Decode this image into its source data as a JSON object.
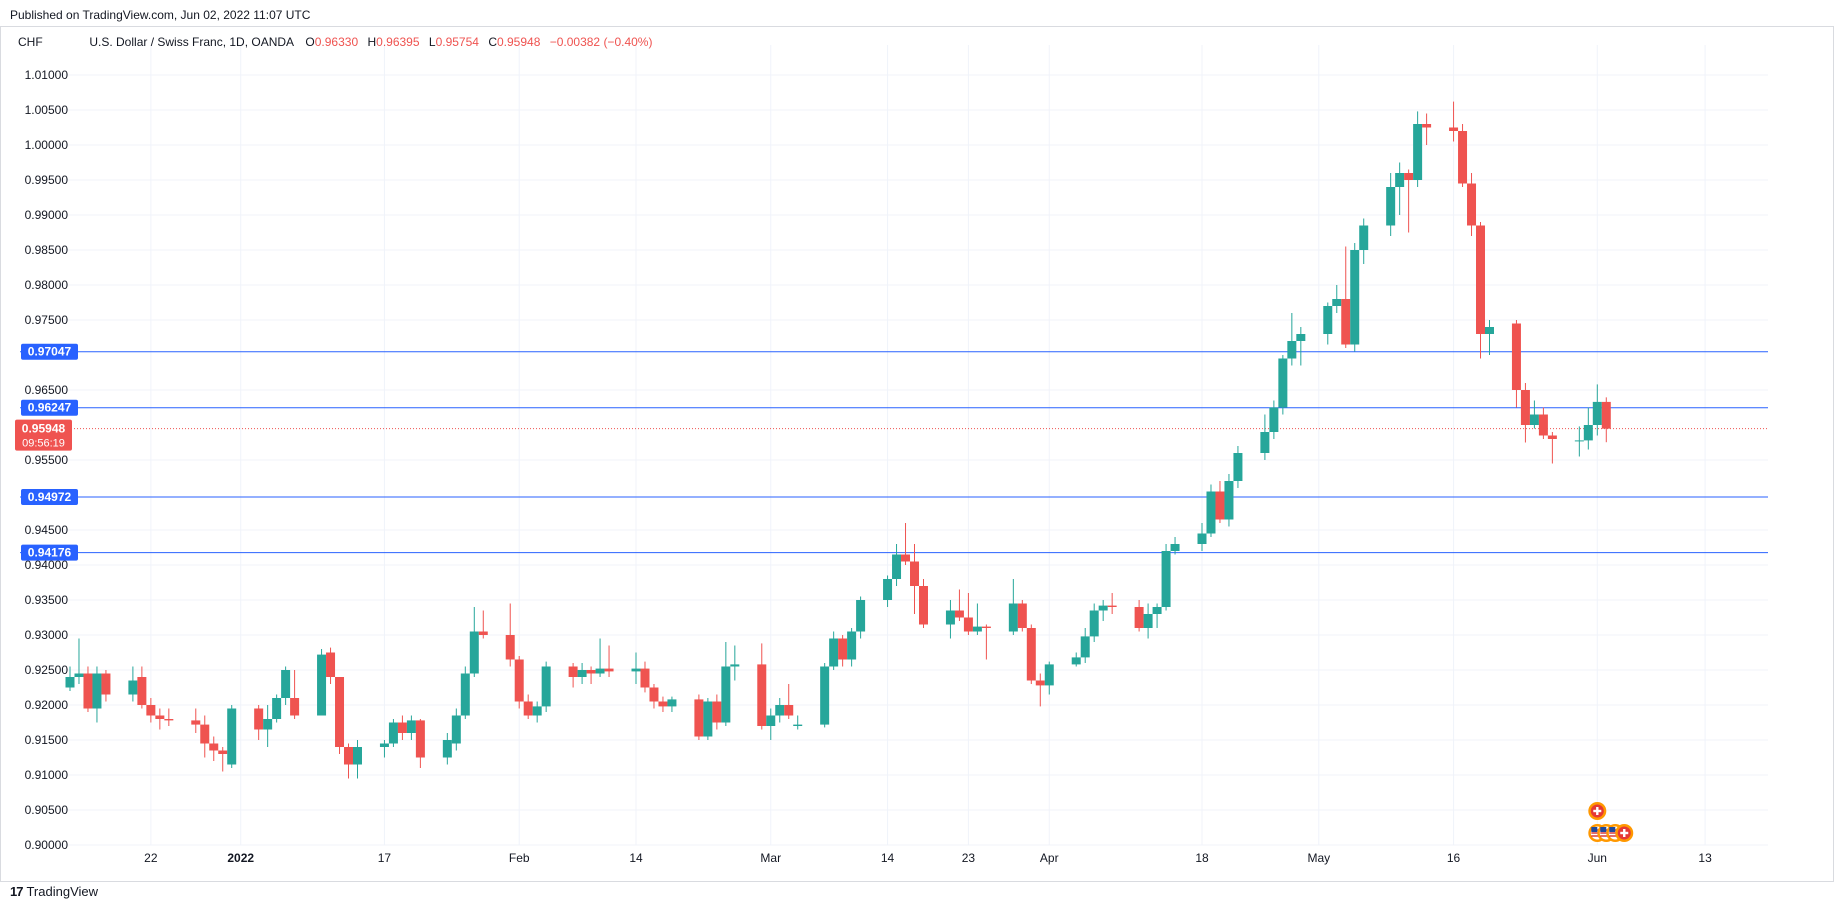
{
  "header": {
    "published": "Published on TradingView.com, Jun 02, 2022 11:07 UTC"
  },
  "legend": {
    "symbol": "CHF",
    "description": "U.S. Dollar / Swiss Franc, 1D, OANDA",
    "open_label": "O",
    "open": "0.96330",
    "high_label": "H",
    "high": "0.96395",
    "low_label": "L",
    "low": "0.95754",
    "close_label": "C",
    "close": "0.95948",
    "change": "−0.00382 (−0.40%)"
  },
  "footer": {
    "brand": "TradingView",
    "logo_icon": "tradingview-logo-icon"
  },
  "colors": {
    "up": "#26a69a",
    "down": "#ef5350",
    "hline": "#2962ff",
    "grid": "#f0f3fa",
    "price_line": "#ef5350"
  },
  "chart_data": {
    "type": "candlestick",
    "title": "U.S. Dollar / Swiss Franc, 1D, OANDA",
    "y_range": [
      0.9,
      1.011
    ],
    "y_ticks": [
      "0.90000",
      "0.90500",
      "0.91000",
      "0.91500",
      "0.92000",
      "0.92500",
      "0.93000",
      "0.93500",
      "0.94000",
      "0.94500",
      "0.95500",
      "0.96500",
      "0.97500",
      "0.98000",
      "0.98500",
      "0.99000",
      "0.99500",
      "1.00000",
      "1.00500",
      "1.01000"
    ],
    "x_range": [
      "2021-12-13",
      "2022-06-20"
    ],
    "x_ticks": [
      {
        "label": "22",
        "date": "2021-12-22"
      },
      {
        "label": "2022",
        "date": "2022-01-01"
      },
      {
        "label": "17",
        "date": "2022-01-17"
      },
      {
        "label": "Feb",
        "date": "2022-02-01"
      },
      {
        "label": "14",
        "date": "2022-02-14"
      },
      {
        "label": "Mar",
        "date": "2022-03-01"
      },
      {
        "label": "14",
        "date": "2022-03-14"
      },
      {
        "label": "23",
        "date": "2022-03-23"
      },
      {
        "label": "Apr",
        "date": "2022-04-01"
      },
      {
        "label": "18",
        "date": "2022-04-18"
      },
      {
        "label": "May",
        "date": "2022-05-01"
      },
      {
        "label": "16",
        "date": "2022-05-16"
      },
      {
        "label": "Jun",
        "date": "2022-06-01"
      },
      {
        "label": "13",
        "date": "2022-06-13"
      }
    ],
    "horizontal_lines": [
      {
        "value": 0.97047,
        "label": "0.97047"
      },
      {
        "value": 0.96247,
        "label": "0.96247"
      },
      {
        "value": 0.94972,
        "label": "0.94972"
      },
      {
        "value": 0.94176,
        "label": "0.94176"
      }
    ],
    "last_price": {
      "value": 0.95948,
      "label": "0.95948",
      "countdown": "09:56:19"
    },
    "candles": [
      {
        "d": "2021-12-13",
        "o": 0.9225,
        "h": 0.9255,
        "l": 0.922,
        "c": 0.924
      },
      {
        "d": "2021-12-14",
        "o": 0.924,
        "h": 0.9295,
        "l": 0.923,
        "c": 0.9245
      },
      {
        "d": "2021-12-15",
        "o": 0.9245,
        "h": 0.9255,
        "l": 0.919,
        "c": 0.9195
      },
      {
        "d": "2021-12-16",
        "o": 0.9195,
        "h": 0.9255,
        "l": 0.9175,
        "c": 0.9245
      },
      {
        "d": "2021-12-17",
        "o": 0.9245,
        "h": 0.925,
        "l": 0.9205,
        "c": 0.9215
      },
      {
        "d": "2021-12-20",
        "o": 0.9215,
        "h": 0.9255,
        "l": 0.9205,
        "c": 0.9235
      },
      {
        "d": "2021-12-21",
        "o": 0.924,
        "h": 0.9255,
        "l": 0.9195,
        "c": 0.92
      },
      {
        "d": "2021-12-22",
        "o": 0.92,
        "h": 0.921,
        "l": 0.9175,
        "c": 0.9185
      },
      {
        "d": "2021-12-23",
        "o": 0.9185,
        "h": 0.9195,
        "l": 0.9165,
        "c": 0.918
      },
      {
        "d": "2021-12-24",
        "o": 0.918,
        "h": 0.9195,
        "l": 0.917,
        "c": 0.9178
      },
      {
        "d": "2021-12-27",
        "o": 0.9178,
        "h": 0.9195,
        "l": 0.916,
        "c": 0.9172
      },
      {
        "d": "2021-12-28",
        "o": 0.9172,
        "h": 0.9185,
        "l": 0.9125,
        "c": 0.9145
      },
      {
        "d": "2021-12-29",
        "o": 0.9145,
        "h": 0.9155,
        "l": 0.912,
        "c": 0.9135
      },
      {
        "d": "2021-12-30",
        "o": 0.9135,
        "h": 0.914,
        "l": 0.9105,
        "c": 0.913
      },
      {
        "d": "2021-12-31",
        "o": 0.9115,
        "h": 0.92,
        "l": 0.911,
        "c": 0.9195
      },
      {
        "d": "2022-01-03",
        "o": 0.9195,
        "h": 0.92,
        "l": 0.915,
        "c": 0.9165
      },
      {
        "d": "2022-01-04",
        "o": 0.9165,
        "h": 0.92,
        "l": 0.914,
        "c": 0.918
      },
      {
        "d": "2022-01-05",
        "o": 0.918,
        "h": 0.9215,
        "l": 0.9175,
        "c": 0.921
      },
      {
        "d": "2022-01-06",
        "o": 0.921,
        "h": 0.9255,
        "l": 0.92,
        "c": 0.925
      },
      {
        "d": "2022-01-07",
        "o": 0.921,
        "h": 0.925,
        "l": 0.918,
        "c": 0.9185
      },
      {
        "d": "2022-01-10",
        "o": 0.9185,
        "h": 0.928,
        "l": 0.9185,
        "c": 0.9272
      },
      {
        "d": "2022-01-11",
        "o": 0.9275,
        "h": 0.9282,
        "l": 0.923,
        "c": 0.924
      },
      {
        "d": "2022-01-12",
        "o": 0.924,
        "h": 0.924,
        "l": 0.913,
        "c": 0.914
      },
      {
        "d": "2022-01-13",
        "o": 0.914,
        "h": 0.9145,
        "l": 0.9095,
        "c": 0.9115
      },
      {
        "d": "2022-01-14",
        "o": 0.9115,
        "h": 0.915,
        "l": 0.9095,
        "c": 0.914
      },
      {
        "d": "2022-01-17",
        "o": 0.914,
        "h": 0.915,
        "l": 0.9125,
        "c": 0.9145
      },
      {
        "d": "2022-01-18",
        "o": 0.9145,
        "h": 0.918,
        "l": 0.914,
        "c": 0.9175
      },
      {
        "d": "2022-01-19",
        "o": 0.9175,
        "h": 0.9185,
        "l": 0.915,
        "c": 0.916
      },
      {
        "d": "2022-01-20",
        "o": 0.916,
        "h": 0.9185,
        "l": 0.915,
        "c": 0.9178
      },
      {
        "d": "2022-01-21",
        "o": 0.9178,
        "h": 0.918,
        "l": 0.911,
        "c": 0.9125
      },
      {
        "d": "2022-01-24",
        "o": 0.9125,
        "h": 0.916,
        "l": 0.9115,
        "c": 0.915
      },
      {
        "d": "2022-01-25",
        "o": 0.9145,
        "h": 0.9195,
        "l": 0.9135,
        "c": 0.9185
      },
      {
        "d": "2022-01-26",
        "o": 0.9185,
        "h": 0.9255,
        "l": 0.918,
        "c": 0.9245
      },
      {
        "d": "2022-01-27",
        "o": 0.9245,
        "h": 0.934,
        "l": 0.924,
        "c": 0.9305
      },
      {
        "d": "2022-01-28",
        "o": 0.9305,
        "h": 0.9335,
        "l": 0.9295,
        "c": 0.93
      },
      {
        "d": "2022-01-31",
        "o": 0.93,
        "h": 0.9345,
        "l": 0.9255,
        "c": 0.9265
      },
      {
        "d": "2022-02-01",
        "o": 0.9265,
        "h": 0.927,
        "l": 0.9195,
        "c": 0.9205
      },
      {
        "d": "2022-02-02",
        "o": 0.9205,
        "h": 0.9215,
        "l": 0.918,
        "c": 0.9185
      },
      {
        "d": "2022-02-03",
        "o": 0.9185,
        "h": 0.9205,
        "l": 0.9175,
        "c": 0.9198
      },
      {
        "d": "2022-02-04",
        "o": 0.9198,
        "h": 0.9262,
        "l": 0.919,
        "c": 0.9255
      },
      {
        "d": "2022-02-07",
        "o": 0.9255,
        "h": 0.926,
        "l": 0.9225,
        "c": 0.924
      },
      {
        "d": "2022-02-08",
        "o": 0.924,
        "h": 0.926,
        "l": 0.923,
        "c": 0.925
      },
      {
        "d": "2022-02-09",
        "o": 0.925,
        "h": 0.9255,
        "l": 0.923,
        "c": 0.9245
      },
      {
        "d": "2022-02-10",
        "o": 0.9245,
        "h": 0.9295,
        "l": 0.924,
        "c": 0.9252
      },
      {
        "d": "2022-02-11",
        "o": 0.9252,
        "h": 0.9285,
        "l": 0.924,
        "c": 0.9248
      },
      {
        "d": "2022-02-14",
        "o": 0.9248,
        "h": 0.9275,
        "l": 0.923,
        "c": 0.9252
      },
      {
        "d": "2022-02-15",
        "o": 0.9252,
        "h": 0.9262,
        "l": 0.9218,
        "c": 0.9225
      },
      {
        "d": "2022-02-16",
        "o": 0.9225,
        "h": 0.923,
        "l": 0.9195,
        "c": 0.9205
      },
      {
        "d": "2022-02-17",
        "o": 0.9205,
        "h": 0.9212,
        "l": 0.919,
        "c": 0.9198
      },
      {
        "d": "2022-02-18",
        "o": 0.9198,
        "h": 0.9212,
        "l": 0.919,
        "c": 0.9208
      },
      {
        "d": "2022-02-21",
        "o": 0.9208,
        "h": 0.9215,
        "l": 0.915,
        "c": 0.9155
      },
      {
        "d": "2022-02-22",
        "o": 0.9155,
        "h": 0.921,
        "l": 0.915,
        "c": 0.9205
      },
      {
        "d": "2022-02-23",
        "o": 0.9205,
        "h": 0.9215,
        "l": 0.9165,
        "c": 0.9175
      },
      {
        "d": "2022-02-24",
        "o": 0.9175,
        "h": 0.929,
        "l": 0.917,
        "c": 0.9255
      },
      {
        "d": "2022-02-25",
        "o": 0.9255,
        "h": 0.9285,
        "l": 0.9235,
        "c": 0.9258
      },
      {
        "d": "2022-02-28",
        "o": 0.9258,
        "h": 0.9288,
        "l": 0.9165,
        "c": 0.917
      },
      {
        "d": "2022-03-01",
        "o": 0.917,
        "h": 0.9195,
        "l": 0.915,
        "c": 0.9185
      },
      {
        "d": "2022-03-02",
        "o": 0.9185,
        "h": 0.921,
        "l": 0.9175,
        "c": 0.92
      },
      {
        "d": "2022-03-03",
        "o": 0.92,
        "h": 0.923,
        "l": 0.918,
        "c": 0.9185
      },
      {
        "d": "2022-03-04",
        "o": 0.917,
        "h": 0.9185,
        "l": 0.9165,
        "c": 0.9172
      },
      {
        "d": "2022-03-07",
        "o": 0.9172,
        "h": 0.926,
        "l": 0.9168,
        "c": 0.9255
      },
      {
        "d": "2022-03-08",
        "o": 0.9255,
        "h": 0.9305,
        "l": 0.925,
        "c": 0.9295
      },
      {
        "d": "2022-03-09",
        "o": 0.9295,
        "h": 0.93,
        "l": 0.9255,
        "c": 0.9265
      },
      {
        "d": "2022-03-10",
        "o": 0.9265,
        "h": 0.931,
        "l": 0.9255,
        "c": 0.9305
      },
      {
        "d": "2022-03-11",
        "o": 0.9305,
        "h": 0.9355,
        "l": 0.9295,
        "c": 0.935
      },
      {
        "d": "2022-03-14",
        "o": 0.935,
        "h": 0.9385,
        "l": 0.934,
        "c": 0.938
      },
      {
        "d": "2022-03-15",
        "o": 0.938,
        "h": 0.943,
        "l": 0.937,
        "c": 0.9415
      },
      {
        "d": "2022-03-16",
        "o": 0.9415,
        "h": 0.946,
        "l": 0.94,
        "c": 0.9405
      },
      {
        "d": "2022-03-17",
        "o": 0.9405,
        "h": 0.943,
        "l": 0.933,
        "c": 0.937
      },
      {
        "d": "2022-03-18",
        "o": 0.937,
        "h": 0.938,
        "l": 0.931,
        "c": 0.9315
      },
      {
        "d": "2022-03-21",
        "o": 0.9315,
        "h": 0.935,
        "l": 0.9295,
        "c": 0.9335
      },
      {
        "d": "2022-03-22",
        "o": 0.9335,
        "h": 0.9365,
        "l": 0.932,
        "c": 0.9325
      },
      {
        "d": "2022-03-23",
        "o": 0.9325,
        "h": 0.936,
        "l": 0.93,
        "c": 0.9305
      },
      {
        "d": "2022-03-24",
        "o": 0.9305,
        "h": 0.9345,
        "l": 0.93,
        "c": 0.9312
      },
      {
        "d": "2022-03-25",
        "o": 0.9312,
        "h": 0.9315,
        "l": 0.9265,
        "c": 0.931
      },
      {
        "d": "2022-03-28",
        "o": 0.9305,
        "h": 0.938,
        "l": 0.93,
        "c": 0.9345
      },
      {
        "d": "2022-03-29",
        "o": 0.9345,
        "h": 0.935,
        "l": 0.9305,
        "c": 0.931
      },
      {
        "d": "2022-03-30",
        "o": 0.931,
        "h": 0.9315,
        "l": 0.923,
        "c": 0.9235
      },
      {
        "d": "2022-03-31",
        "o": 0.9235,
        "h": 0.9245,
        "l": 0.9198,
        "c": 0.9228
      },
      {
        "d": "2022-04-01",
        "o": 0.9228,
        "h": 0.9262,
        "l": 0.9215,
        "c": 0.9258
      },
      {
        "d": "2022-04-04",
        "o": 0.9258,
        "h": 0.9275,
        "l": 0.9255,
        "c": 0.9268
      },
      {
        "d": "2022-04-05",
        "o": 0.9268,
        "h": 0.931,
        "l": 0.926,
        "c": 0.9298
      },
      {
        "d": "2022-04-06",
        "o": 0.9298,
        "h": 0.9345,
        "l": 0.929,
        "c": 0.9335
      },
      {
        "d": "2022-04-07",
        "o": 0.9335,
        "h": 0.935,
        "l": 0.932,
        "c": 0.9342
      },
      {
        "d": "2022-04-08",
        "o": 0.9342,
        "h": 0.936,
        "l": 0.933,
        "c": 0.934
      },
      {
        "d": "2022-04-11",
        "o": 0.934,
        "h": 0.935,
        "l": 0.9305,
        "c": 0.931
      },
      {
        "d": "2022-04-12",
        "o": 0.931,
        "h": 0.9345,
        "l": 0.9295,
        "c": 0.933
      },
      {
        "d": "2022-04-13",
        "o": 0.933,
        "h": 0.9345,
        "l": 0.931,
        "c": 0.934
      },
      {
        "d": "2022-04-14",
        "o": 0.934,
        "h": 0.943,
        "l": 0.9335,
        "c": 0.942
      },
      {
        "d": "2022-04-15",
        "o": 0.942,
        "h": 0.944,
        "l": 0.9415,
        "c": 0.943
      },
      {
        "d": "2022-04-18",
        "o": 0.943,
        "h": 0.946,
        "l": 0.942,
        "c": 0.9445
      },
      {
        "d": "2022-04-19",
        "o": 0.9445,
        "h": 0.9515,
        "l": 0.944,
        "c": 0.9505
      },
      {
        "d": "2022-04-20",
        "o": 0.9505,
        "h": 0.952,
        "l": 0.946,
        "c": 0.9465
      },
      {
        "d": "2022-04-21",
        "o": 0.9465,
        "h": 0.953,
        "l": 0.9455,
        "c": 0.952
      },
      {
        "d": "2022-04-22",
        "o": 0.952,
        "h": 0.957,
        "l": 0.951,
        "c": 0.956
      },
      {
        "d": "2022-04-25",
        "o": 0.956,
        "h": 0.9615,
        "l": 0.955,
        "c": 0.959
      },
      {
        "d": "2022-04-26",
        "o": 0.959,
        "h": 0.9635,
        "l": 0.958,
        "c": 0.9625
      },
      {
        "d": "2022-04-27",
        "o": 0.9625,
        "h": 0.97,
        "l": 0.9615,
        "c": 0.9695
      },
      {
        "d": "2022-04-28",
        "o": 0.9695,
        "h": 0.976,
        "l": 0.9685,
        "c": 0.972
      },
      {
        "d": "2022-04-29",
        "o": 0.972,
        "h": 0.974,
        "l": 0.9685,
        "c": 0.973
      },
      {
        "d": "2022-05-02",
        "o": 0.973,
        "h": 0.9775,
        "l": 0.9715,
        "c": 0.977
      },
      {
        "d": "2022-05-03",
        "o": 0.977,
        "h": 0.98,
        "l": 0.976,
        "c": 0.978
      },
      {
        "d": "2022-05-04",
        "o": 0.978,
        "h": 0.9855,
        "l": 0.971,
        "c": 0.9715
      },
      {
        "d": "2022-05-05",
        "o": 0.9715,
        "h": 0.986,
        "l": 0.9705,
        "c": 0.985
      },
      {
        "d": "2022-05-06",
        "o": 0.985,
        "h": 0.9895,
        "l": 0.983,
        "c": 0.9885
      },
      {
        "d": "2022-05-09",
        "o": 0.9885,
        "h": 0.996,
        "l": 0.987,
        "c": 0.994
      },
      {
        "d": "2022-05-10",
        "o": 0.994,
        "h": 0.9975,
        "l": 0.99,
        "c": 0.996
      },
      {
        "d": "2022-05-11",
        "o": 0.996,
        "h": 0.9965,
        "l": 0.9875,
        "c": 0.995
      },
      {
        "d": "2022-05-12",
        "o": 0.995,
        "h": 1.0048,
        "l": 0.994,
        "c": 1.003
      },
      {
        "d": "2022-05-13",
        "o": 1.003,
        "h": 1.0045,
        "l": 1.0,
        "c": 1.0025
      },
      {
        "d": "2022-05-16",
        "o": 1.0025,
        "h": 1.0062,
        "l": 1.0005,
        "c": 1.002
      },
      {
        "d": "2022-05-17",
        "o": 1.002,
        "h": 1.003,
        "l": 0.994,
        "c": 0.9945
      },
      {
        "d": "2022-05-18",
        "o": 0.9945,
        "h": 0.996,
        "l": 0.987,
        "c": 0.9885
      },
      {
        "d": "2022-05-19",
        "o": 0.9885,
        "h": 0.989,
        "l": 0.9695,
        "c": 0.973
      },
      {
        "d": "2022-05-20",
        "o": 0.973,
        "h": 0.975,
        "l": 0.97,
        "c": 0.974
      },
      {
        "d": "2022-05-23",
        "o": 0.9745,
        "h": 0.975,
        "l": 0.9625,
        "c": 0.965
      },
      {
        "d": "2022-05-24",
        "o": 0.965,
        "h": 0.966,
        "l": 0.9575,
        "c": 0.96
      },
      {
        "d": "2022-05-25",
        "o": 0.96,
        "h": 0.9635,
        "l": 0.9595,
        "c": 0.9615
      },
      {
        "d": "2022-05-26",
        "o": 0.9615,
        "h": 0.9625,
        "l": 0.958,
        "c": 0.9585
      },
      {
        "d": "2022-05-27",
        "o": 0.9585,
        "h": 0.959,
        "l": 0.9545,
        "c": 0.958
      },
      {
        "d": "2022-05-30",
        "o": 0.9578,
        "h": 0.9598,
        "l": 0.9555,
        "c": 0.9578
      },
      {
        "d": "2022-05-31",
        "o": 0.9578,
        "h": 0.9625,
        "l": 0.9565,
        "c": 0.96
      },
      {
        "d": "2022-06-01",
        "o": 0.96,
        "h": 0.9658,
        "l": 0.9585,
        "c": 0.9633
      },
      {
        "d": "2022-06-02",
        "o": 0.9633,
        "h": 0.96395,
        "l": 0.95754,
        "c": 0.95948
      }
    ],
    "event_markers": [
      {
        "date": "2022-06-01",
        "flag": "ch",
        "row": 2
      },
      {
        "date": "2022-06-01",
        "flag": "us",
        "row": 1
      },
      {
        "date": "2022-06-02",
        "flag": "us",
        "row": 1
      },
      {
        "date": "2022-06-03",
        "flag": "us",
        "row": 1
      },
      {
        "date": "2022-06-04",
        "flag": "ch",
        "row": 1
      }
    ]
  }
}
